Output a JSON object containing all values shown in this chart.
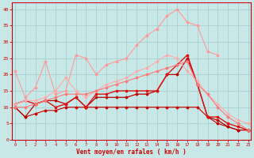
{
  "title": "",
  "xlabel": "Vent moyen/en rafales ( km/h )",
  "background_color": "#c8e8e8",
  "grid_color": "#a0cccc",
  "text_color": "#cc0000",
  "x_ticks": [
    0,
    1,
    2,
    3,
    4,
    5,
    6,
    7,
    8,
    9,
    10,
    11,
    12,
    13,
    14,
    15,
    16,
    17,
    18,
    19,
    20,
    21,
    22,
    23
  ],
  "y_ticks": [
    0,
    5,
    10,
    15,
    20,
    25,
    30,
    35,
    40
  ],
  "ylim": [
    0,
    42
  ],
  "xlim": [
    -0.3,
    23.3
  ],
  "lines": [
    {
      "x": [
        0,
        1,
        2,
        3,
        4,
        5,
        6,
        7,
        8,
        9,
        10,
        11,
        12,
        13,
        14,
        15,
        16,
        17,
        18,
        19,
        20,
        21,
        22,
        23
      ],
      "y": [
        10,
        7,
        8,
        9,
        9,
        10,
        10,
        10,
        10,
        10,
        10,
        10,
        10,
        10,
        10,
        10,
        10,
        10,
        10,
        7,
        5,
        4,
        3,
        3
      ],
      "color": "#cc0000",
      "lw": 0.8,
      "marker": "D",
      "ms": 1.5
    },
    {
      "x": [
        0,
        1,
        2,
        3,
        4,
        5,
        6,
        7,
        8,
        9,
        10,
        11,
        12,
        13,
        14,
        15,
        16,
        17,
        18,
        19,
        20,
        21,
        22,
        23
      ],
      "y": [
        10,
        7,
        11,
        12,
        12,
        11,
        13,
        10,
        13,
        13,
        13,
        13,
        14,
        14,
        15,
        20,
        20,
        25,
        17,
        7,
        6,
        4,
        3,
        3
      ],
      "color": "#bb0000",
      "lw": 0.9,
      "marker": "D",
      "ms": 1.5
    },
    {
      "x": [
        0,
        1,
        2,
        3,
        4,
        5,
        6,
        7,
        8,
        9,
        10,
        11,
        12,
        13,
        14,
        15,
        16,
        17,
        18,
        19,
        20,
        21,
        22,
        23
      ],
      "y": [
        11,
        12,
        11,
        12,
        10,
        11,
        13,
        10,
        14,
        14,
        15,
        15,
        15,
        15,
        15,
        20,
        23,
        26,
        17,
        7,
        7,
        5,
        4,
        3
      ],
      "color": "#dd1111",
      "lw": 1.0,
      "marker": "s",
      "ms": 1.8
    },
    {
      "x": [
        0,
        1,
        2,
        3,
        4,
        5,
        6,
        7,
        8,
        9,
        10,
        11,
        12,
        13,
        14,
        15,
        16,
        17,
        18,
        19,
        20,
        21,
        22,
        23
      ],
      "y": [
        21,
        13,
        16,
        24,
        14,
        15,
        26,
        25,
        20,
        23,
        24,
        25,
        29,
        32,
        34,
        38,
        40,
        36,
        35,
        27,
        26,
        null,
        null,
        null
      ],
      "color": "#ff9999",
      "lw": 0.8,
      "marker": "D",
      "ms": 1.5
    },
    {
      "x": [
        0,
        1,
        2,
        3,
        4,
        5,
        6,
        7,
        8,
        9,
        10,
        11,
        12,
        13,
        14,
        15,
        16,
        17,
        18,
        19,
        20,
        21,
        22,
        23
      ],
      "y": [
        11,
        12,
        12,
        13,
        15,
        19,
        15,
        13,
        15,
        17,
        18,
        19,
        21,
        22,
        24,
        26,
        25,
        21,
        18,
        14,
        11,
        8,
        6,
        5
      ],
      "color": "#ffaaaa",
      "lw": 0.8,
      "marker": "D",
      "ms": 1.5
    },
    {
      "x": [
        0,
        1,
        2,
        3,
        4,
        5,
        6,
        7,
        8,
        9,
        10,
        11,
        12,
        13,
        14,
        15,
        16,
        17,
        18,
        19,
        20,
        21,
        22,
        23
      ],
      "y": [
        10,
        10,
        11,
        12,
        13,
        14,
        14,
        14,
        15,
        16,
        17,
        18,
        19,
        20,
        21,
        22,
        23,
        24,
        17,
        14,
        10,
        7,
        5,
        3
      ],
      "color": "#ff7777",
      "lw": 0.8,
      "marker": "D",
      "ms": 1.5
    }
  ]
}
